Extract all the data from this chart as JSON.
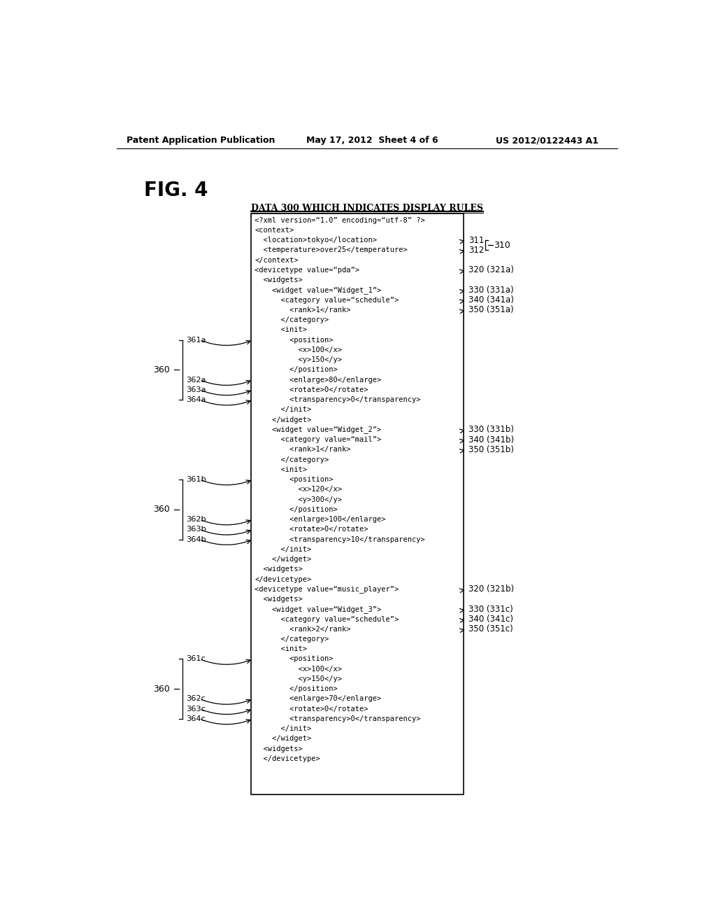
{
  "header_left": "Patent Application Publication",
  "header_center": "May 17, 2012  Sheet 4 of 6",
  "header_right": "US 2012/0122443 A1",
  "fig_label": "FIG. 4",
  "box_title": "DATA 300 WHICH INDICATES DISPLAY RULES",
  "background_color": "#ffffff",
  "xml_lines": [
    "<?xml version=‘1.0’ encoding=‘utf-8’ ?>",
    "<context>",
    "  <location>tokyo</location>",
    "  <temperature>over25</temperature>",
    "</context>",
    "<devicetype value=‘pda’>",
    "  <widgets>",
    "    <widget value=‘Widget_1’>",
    "      <category value=‘schedule’>",
    "        <rank>1</rank>",
    "      </category>",
    "      <init>",
    "        <position>",
    "          <x>100</x>",
    "          <y>150</y>",
    "        </position>",
    "        <enlarge>80</enlarge>",
    "        <rotate>0</rotate>",
    "        <transparency>0</transparency>",
    "      </init>",
    "    </widget>",
    "    <widget value=‘Widget_2’>",
    "      <category value=‘mail’>",
    "        <rank>1</rank>",
    "      </category>",
    "      <init>",
    "        <position>",
    "          <x>120</x>",
    "          <y>300</y>",
    "        </position>",
    "        <enlarge>100</enlarge>",
    "        <rotate>0</rotate>",
    "        <transparency>10</transparency>",
    "      </init>",
    "    </widget>",
    "  <widgets>",
    "</devicetype>",
    "<devicetype value=‘music_player’>",
    "  <widgets>",
    "    <widget value=‘Widget_3’>",
    "      <category value=‘schedule’>",
    "        <rank>2</rank>",
    "      </category>",
    "      <init>",
    "        <position>",
    "          <x>100</x>",
    "          <y>150</y>",
    "        </position>",
    "        <enlarge>70</enlarge>",
    "        <rotate>0</rotate>",
    "        <transparency>0</transparency>",
    "      </init>",
    "    </widget>",
    "  <widgets>",
    "  </devicetype>"
  ],
  "right_labels": [
    {
      "line": 2,
      "text": "311"
    },
    {
      "line": 3,
      "text": "312"
    },
    {
      "line": 5,
      "text": "320 (321a)"
    },
    {
      "line": 7,
      "text": "330 (331a)"
    },
    {
      "line": 8,
      "text": "340 (341a)"
    },
    {
      "line": 9,
      "text": "350 (351a)"
    },
    {
      "line": 21,
      "text": "330 (331b)"
    },
    {
      "line": 22,
      "text": "340 (341b)"
    },
    {
      "line": 23,
      "text": "350 (351b)"
    },
    {
      "line": 37,
      "text": "320 (321b)"
    },
    {
      "line": 39,
      "text": "330 (331c)"
    },
    {
      "line": 40,
      "text": "340 (341c)"
    },
    {
      "line": 41,
      "text": "350 (351c)"
    }
  ],
  "left_labels_a": [
    {
      "line": 12,
      "text": "361a"
    },
    {
      "line": 16,
      "text": "362a"
    },
    {
      "line": 17,
      "text": "363a"
    },
    {
      "line": 18,
      "text": "364a"
    }
  ],
  "left_labels_b": [
    {
      "line": 26,
      "text": "361b"
    },
    {
      "line": 30,
      "text": "362b"
    },
    {
      "line": 31,
      "text": "363b"
    },
    {
      "line": 32,
      "text": "364b"
    }
  ],
  "left_labels_c": [
    {
      "line": 44,
      "text": "361c"
    },
    {
      "line": 48,
      "text": "362c"
    },
    {
      "line": 49,
      "text": "363c"
    },
    {
      "line": 50,
      "text": "364c"
    }
  ]
}
